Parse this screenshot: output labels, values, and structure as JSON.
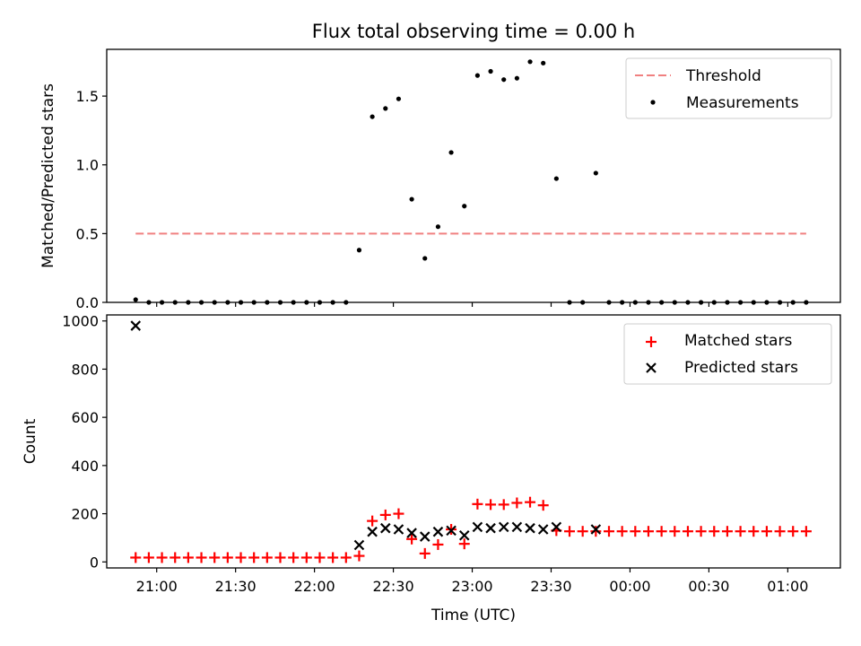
{
  "chart_data": [
    {
      "type": "scatter",
      "title": "Flux total observing time = 0.00 h",
      "xlabel": "",
      "ylabel": "Matched/Predicted stars",
      "ylim": [
        0,
        1.84
      ],
      "y_ticks": [
        0.0,
        0.5,
        1.0,
        1.5
      ],
      "y_tick_labels": [
        "0.0",
        "0.5",
        "1.0",
        "1.5"
      ],
      "xlim": [
        "20:41",
        "01:20"
      ],
      "grid": false,
      "legend": "top-right",
      "threshold": {
        "name": "Threshold",
        "value": 0.5,
        "x_start": "20:52",
        "x_end": "01:07",
        "color": "#f08080",
        "style": "dashed"
      },
      "measurements": {
        "name": "Measurements",
        "color": "#000000",
        "points": [
          [
            "20:52",
            0.02
          ],
          [
            "20:57",
            0.0
          ],
          [
            "21:02",
            0.0
          ],
          [
            "21:07",
            0.0
          ],
          [
            "21:12",
            0.0
          ],
          [
            "21:17",
            0.0
          ],
          [
            "21:22",
            0.0
          ],
          [
            "21:27",
            0.0
          ],
          [
            "21:32",
            0.0
          ],
          [
            "21:37",
            0.0
          ],
          [
            "21:42",
            0.0
          ],
          [
            "21:47",
            0.0
          ],
          [
            "21:52",
            0.0
          ],
          [
            "21:57",
            0.0
          ],
          [
            "22:02",
            0.0
          ],
          [
            "22:07",
            0.0
          ],
          [
            "22:12",
            0.0
          ],
          [
            "22:17",
            0.38
          ],
          [
            "22:22",
            1.35
          ],
          [
            "22:27",
            1.41
          ],
          [
            "22:32",
            1.48
          ],
          [
            "22:37",
            0.75
          ],
          [
            "22:42",
            0.32
          ],
          [
            "22:47",
            0.55
          ],
          [
            "22:52",
            1.09
          ],
          [
            "22:57",
            0.7
          ],
          [
            "23:02",
            1.65
          ],
          [
            "23:07",
            1.68
          ],
          [
            "23:12",
            1.62
          ],
          [
            "23:17",
            1.63
          ],
          [
            "23:22",
            1.75
          ],
          [
            "23:27",
            1.74
          ],
          [
            "23:32",
            0.9
          ],
          [
            "23:37",
            0.0
          ],
          [
            "23:42",
            0.0
          ],
          [
            "23:47",
            0.94
          ],
          [
            "23:52",
            0.0
          ],
          [
            "23:57",
            0.0
          ],
          [
            "00:02",
            0.0
          ],
          [
            "00:07",
            0.0
          ],
          [
            "00:12",
            0.0
          ],
          [
            "00:17",
            0.0
          ],
          [
            "00:22",
            0.0
          ],
          [
            "00:27",
            0.0
          ],
          [
            "00:32",
            0.0
          ],
          [
            "00:37",
            0.0
          ],
          [
            "00:42",
            0.0
          ],
          [
            "00:47",
            0.0
          ],
          [
            "00:52",
            0.0
          ],
          [
            "00:57",
            0.0
          ],
          [
            "01:02",
            0.0
          ],
          [
            "01:07",
            0.0
          ]
        ]
      }
    },
    {
      "type": "scatter",
      "title": "",
      "xlabel": "Time (UTC)",
      "ylabel": "Count",
      "ylim": [
        -25,
        1025
      ],
      "y_ticks": [
        0,
        200,
        400,
        600,
        800,
        1000
      ],
      "y_tick_labels": [
        "0",
        "200",
        "400",
        "600",
        "800",
        "1000"
      ],
      "xlim": [
        "20:41",
        "01:20"
      ],
      "x_ticks": [
        "21:00",
        "21:30",
        "22:00",
        "22:30",
        "23:00",
        "23:30",
        "00:00",
        "00:30",
        "01:00"
      ],
      "grid": false,
      "legend": "top-right",
      "series": [
        {
          "name": "Matched stars",
          "marker": "plus",
          "color": "#ff0000",
          "points": [
            [
              "20:52",
              18
            ],
            [
              "20:57",
              18
            ],
            [
              "21:02",
              18
            ],
            [
              "21:07",
              18
            ],
            [
              "21:12",
              18
            ],
            [
              "21:17",
              18
            ],
            [
              "21:22",
              18
            ],
            [
              "21:27",
              18
            ],
            [
              "21:32",
              18
            ],
            [
              "21:37",
              18
            ],
            [
              "21:42",
              18
            ],
            [
              "21:47",
              18
            ],
            [
              "21:52",
              18
            ],
            [
              "21:57",
              18
            ],
            [
              "22:02",
              18
            ],
            [
              "22:07",
              18
            ],
            [
              "22:12",
              18
            ],
            [
              "22:17",
              25
            ],
            [
              "22:22",
              170
            ],
            [
              "22:27",
              195
            ],
            [
              "22:32",
              200
            ],
            [
              "22:37",
              95
            ],
            [
              "22:42",
              35
            ],
            [
              "22:47",
              72
            ],
            [
              "22:52",
              135
            ],
            [
              "22:57",
              75
            ],
            [
              "23:02",
              240
            ],
            [
              "23:07",
              238
            ],
            [
              "23:12",
              238
            ],
            [
              "23:17",
              245
            ],
            [
              "23:22",
              248
            ],
            [
              "23:27",
              235
            ],
            [
              "23:32",
              130
            ],
            [
              "23:37",
              127
            ],
            [
              "23:42",
              127
            ],
            [
              "23:47",
              127
            ],
            [
              "23:52",
              127
            ],
            [
              "23:57",
              127
            ],
            [
              "00:02",
              127
            ],
            [
              "00:07",
              127
            ],
            [
              "00:12",
              127
            ],
            [
              "00:17",
              127
            ],
            [
              "00:22",
              127
            ],
            [
              "00:27",
              127
            ],
            [
              "00:32",
              127
            ],
            [
              "00:37",
              127
            ],
            [
              "00:42",
              127
            ],
            [
              "00:47",
              127
            ],
            [
              "00:52",
              127
            ],
            [
              "00:57",
              127
            ],
            [
              "01:02",
              127
            ],
            [
              "01:07",
              127
            ]
          ]
        },
        {
          "name": "Predicted stars",
          "marker": "x",
          "color": "#000000",
          "points": [
            [
              "20:52",
              980
            ],
            [
              "22:17",
              70
            ],
            [
              "22:22",
              125
            ],
            [
              "22:27",
              140
            ],
            [
              "22:32",
              135
            ],
            [
              "22:37",
              120
            ],
            [
              "22:42",
              105
            ],
            [
              "22:47",
              125
            ],
            [
              "22:52",
              130
            ],
            [
              "22:57",
              110
            ],
            [
              "23:02",
              145
            ],
            [
              "23:07",
              140
            ],
            [
              "23:12",
              145
            ],
            [
              "23:17",
              145
            ],
            [
              "23:22",
              140
            ],
            [
              "23:27",
              135
            ],
            [
              "23:32",
              145
            ],
            [
              "23:47",
              135
            ]
          ]
        }
      ]
    }
  ]
}
